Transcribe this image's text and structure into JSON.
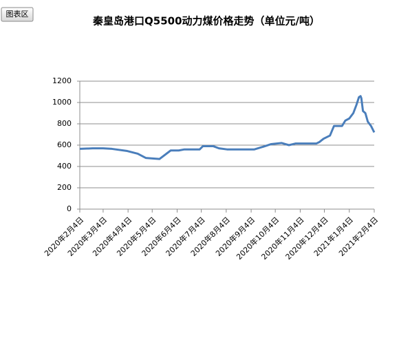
{
  "chart_data": {
    "type": "line",
    "title": "秦皇岛港口Q5500动力煤价格走势（单位元/吨）",
    "panel_label": "图表区",
    "x": [
      "2020-02-04",
      "2020-02-20",
      "2020-03-04",
      "2020-03-15",
      "2020-04-03",
      "2020-04-16",
      "2020-04-26",
      "2020-05-13",
      "2020-05-27",
      "2020-06-06",
      "2020-06-13",
      "2020-07-02",
      "2020-07-06",
      "2020-07-19",
      "2020-07-26",
      "2020-08-05",
      "2020-09-08",
      "2020-09-21",
      "2020-09-29",
      "2020-10-12",
      "2020-10-21",
      "2020-10-29",
      "2020-11-24",
      "2020-11-28",
      "2020-12-03",
      "2020-12-11",
      "2020-12-16",
      "2020-12-26",
      "2020-12-30",
      "2021-01-04",
      "2021-01-09",
      "2021-01-13",
      "2021-01-16",
      "2021-01-18",
      "2021-01-19",
      "2021-01-21",
      "2021-01-24",
      "2021-01-27",
      "2021-01-31",
      "2021-02-04"
    ],
    "series": [
      {
        "color": "#4a7ebb",
        "values": [
          565,
          570,
          570,
          565,
          545,
          520,
          480,
          470,
          550,
          550,
          560,
          560,
          590,
          590,
          570,
          560,
          560,
          590,
          610,
          620,
          600,
          615,
          615,
          630,
          660,
          690,
          780,
          780,
          830,
          850,
          900,
          980,
          1050,
          1060,
          1040,
          920,
          900,
          820,
          780,
          720
        ]
      }
    ],
    "xlim": [
      "2020-02-04",
      "2021-02-04"
    ],
    "xticks": [
      {
        "value": "2020-02-04",
        "label": "2020年2月4日"
      },
      {
        "value": "2020-03-04",
        "label": "2020年3月4日"
      },
      {
        "value": "2020-04-04",
        "label": "2020年4月4日"
      },
      {
        "value": "2020-05-04",
        "label": "2020年5月4日"
      },
      {
        "value": "2020-06-04",
        "label": "2020年6月4日"
      },
      {
        "value": "2020-07-04",
        "label": "2020年7月4日"
      },
      {
        "value": "2020-08-04",
        "label": "2020年8月4日"
      },
      {
        "value": "2020-09-04",
        "label": "2020年9月4日"
      },
      {
        "value": "2020-10-04",
        "label": "2020年10月4日"
      },
      {
        "value": "2020-11-04",
        "label": "2020年11月4日"
      },
      {
        "value": "2020-12-04",
        "label": "2020年12月4日"
      },
      {
        "value": "2021-01-04",
        "label": "2021年1月4日"
      },
      {
        "value": "2021-02-04",
        "label": "2021年2月4日"
      }
    ],
    "ylim": [
      0,
      1200
    ],
    "yticks": [
      0,
      200,
      400,
      600,
      800,
      1000,
      1200
    ],
    "grid": true
  }
}
